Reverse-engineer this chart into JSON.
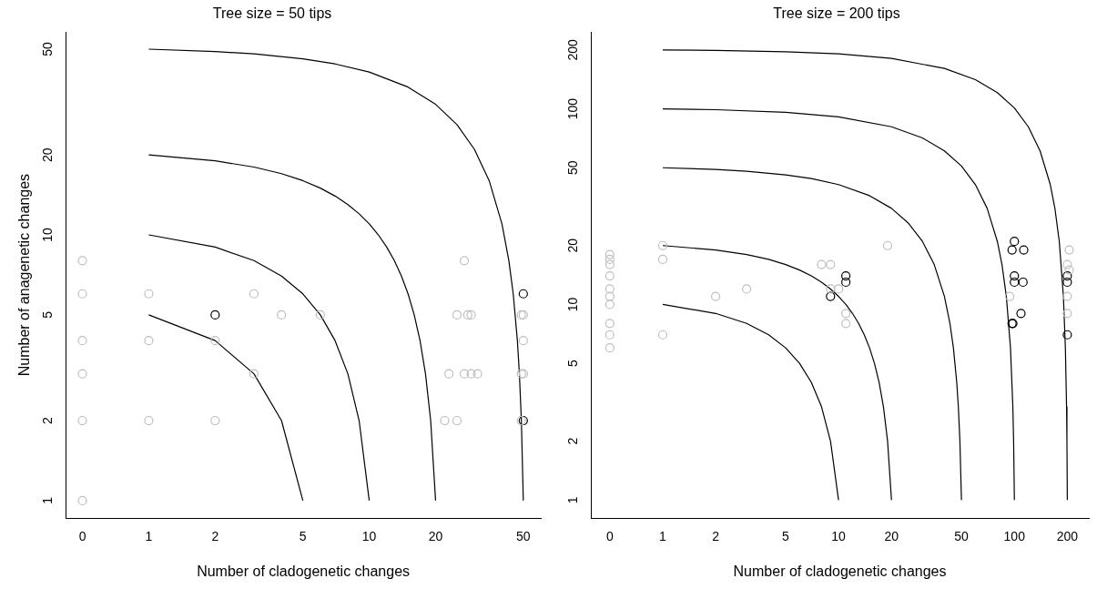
{
  "chart_data": [
    {
      "type": "scatter",
      "title": "Tree size = 50 tips",
      "xlabel": "Number of cladogenetic changes",
      "ylabel": "Number of anagenetic changes",
      "log": "xy",
      "grid": false,
      "legend": false,
      "xlim": [
        0.42,
        60
      ],
      "ylim": [
        0.86,
        58
      ],
      "xticks": [
        {
          "value": 0.5,
          "label": "0"
        },
        1,
        2,
        5,
        10,
        20,
        50
      ],
      "yticks": [
        1,
        2,
        5,
        10,
        20,
        50
      ],
      "series": [
        {
          "type": "line",
          "color": "#000000",
          "x": [
            1,
            2,
            3,
            4,
            5
          ],
          "values": [
            5,
            4,
            3,
            2,
            1
          ]
        },
        {
          "type": "line",
          "color": "#000000",
          "x": [
            1,
            2,
            3,
            4,
            5,
            6,
            7,
            8,
            9,
            10
          ],
          "values": [
            10,
            9,
            8,
            7,
            6,
            5,
            4,
            3,
            2,
            1
          ]
        },
        {
          "type": "line",
          "color": "#000000",
          "x": [
            1,
            2,
            3,
            4,
            5,
            6,
            7,
            8,
            9,
            10,
            11,
            12,
            13,
            14,
            15,
            16,
            17,
            18,
            19,
            20
          ],
          "values": [
            20,
            19,
            18,
            17,
            16,
            15,
            14,
            13,
            12,
            11,
            10,
            9,
            8,
            7,
            6,
            5,
            4,
            3,
            2,
            1
          ]
        },
        {
          "type": "line",
          "color": "#000000",
          "x": [
            1,
            2,
            3,
            5,
            7,
            10,
            15,
            20,
            25,
            30,
            35,
            40,
            43,
            45,
            47,
            48,
            49,
            50
          ],
          "values": [
            50,
            49,
            48,
            46,
            44,
            41,
            36,
            31,
            26,
            21,
            16,
            11,
            8,
            6,
            4,
            3,
            2,
            1
          ]
        },
        {
          "type": "scatter",
          "marker": "circle",
          "color": "#bebebe",
          "x": [
            0.5,
            0.5,
            0.5,
            0.5,
            0.5,
            0.5,
            1,
            1,
            1,
            2,
            2,
            3,
            3,
            4,
            6,
            27,
            25,
            28,
            29,
            23,
            27,
            29,
            31,
            22,
            25,
            49,
            50,
            50,
            49,
            50,
            49
          ],
          "values": [
            8,
            6,
            4,
            3,
            2,
            1,
            6,
            4,
            2,
            4,
            2,
            6,
            3,
            5,
            5,
            8,
            5,
            5,
            5,
            3,
            3,
            3,
            3,
            2,
            2,
            5,
            5,
            4,
            3,
            3,
            2
          ]
        },
        {
          "type": "scatter",
          "marker": "circle",
          "color": "#000000",
          "x": [
            2,
            50,
            50
          ],
          "values": [
            5,
            6,
            2
          ]
        }
      ]
    },
    {
      "type": "scatter",
      "title": "Tree size = 200 tips",
      "xlabel": "Number of cladogenetic changes",
      "log": "xy",
      "grid": false,
      "legend": false,
      "xlim": [
        0.39,
        265
      ],
      "ylim": [
        0.81,
        247
      ],
      "xticks": [
        {
          "value": 0.5,
          "label": "0"
        },
        1,
        2,
        5,
        10,
        20,
        50,
        100,
        200
      ],
      "yticks": [
        1,
        2,
        5,
        10,
        20,
        50,
        100,
        200
      ],
      "series": [
        {
          "type": "line",
          "color": "#000000",
          "x": [
            1,
            2,
            3,
            4,
            5,
            6,
            7,
            8,
            9,
            10
          ],
          "values": [
            10,
            9,
            8,
            7,
            6,
            5,
            4,
            3,
            2,
            1
          ]
        },
        {
          "type": "line",
          "color": "#000000",
          "x": [
            1,
            2,
            3,
            4,
            5,
            6,
            7,
            8,
            9,
            10,
            11,
            12,
            13,
            14,
            15,
            16,
            17,
            18,
            19,
            20
          ],
          "values": [
            20,
            19,
            18,
            17,
            16,
            15,
            14,
            13,
            12,
            11,
            10,
            9,
            8,
            7,
            6,
            5,
            4,
            3,
            2,
            1
          ]
        },
        {
          "type": "line",
          "color": "#000000",
          "x": [
            1,
            2,
            3,
            5,
            7,
            10,
            15,
            20,
            25,
            30,
            35,
            40,
            43,
            45,
            47,
            48,
            49,
            50
          ],
          "values": [
            50,
            49,
            48,
            46,
            44,
            41,
            36,
            31,
            26,
            21,
            16,
            11,
            8,
            6,
            4,
            3,
            2,
            1
          ]
        },
        {
          "type": "line",
          "color": "#000000",
          "x": [
            1,
            2,
            5,
            10,
            20,
            30,
            40,
            50,
            60,
            70,
            80,
            85,
            90,
            95,
            98,
            99,
            100
          ],
          "values": [
            100,
            99,
            96,
            91,
            81,
            71,
            61,
            51,
            41,
            31,
            21,
            16,
            11,
            6,
            3,
            2,
            1
          ]
        },
        {
          "type": "line",
          "color": "#000000",
          "x": [
            1,
            2,
            5,
            10,
            20,
            40,
            60,
            80,
            100,
            120,
            140,
            160,
            170,
            180,
            190,
            195,
            198,
            199,
            200
          ],
          "values": [
            200,
            199,
            196,
            191,
            181,
            161,
            141,
            121,
            101,
            81,
            61,
            41,
            31,
            21,
            11,
            6,
            3,
            2,
            1
          ]
        },
        {
          "type": "scatter",
          "marker": "circle",
          "color": "#bebebe",
          "x": [
            0.5,
            0.5,
            0.5,
            0.5,
            0.5,
            0.5,
            0.5,
            0.5,
            0.5,
            0.5,
            1,
            1,
            1,
            2,
            3,
            8,
            9,
            9,
            10,
            11,
            11,
            19,
            94,
            205,
            200,
            205,
            200,
            200
          ],
          "values": [
            18,
            17,
            16,
            14,
            12,
            11,
            10,
            8,
            7,
            6,
            20,
            17,
            7,
            11,
            12,
            16,
            16,
            12,
            12,
            9,
            8,
            20,
            11,
            19,
            16,
            15,
            11,
            9
          ]
        },
        {
          "type": "scatter",
          "marker": "circle",
          "color": "#000000",
          "x": [
            100,
            97,
            113,
            100,
            100,
            112,
            109,
            97,
            98,
            9,
            11,
            11,
            200,
            200,
            200
          ],
          "values": [
            21,
            19,
            19,
            14,
            13,
            13,
            9,
            8,
            8,
            11,
            14,
            13,
            14,
            13,
            7
          ]
        }
      ]
    }
  ]
}
